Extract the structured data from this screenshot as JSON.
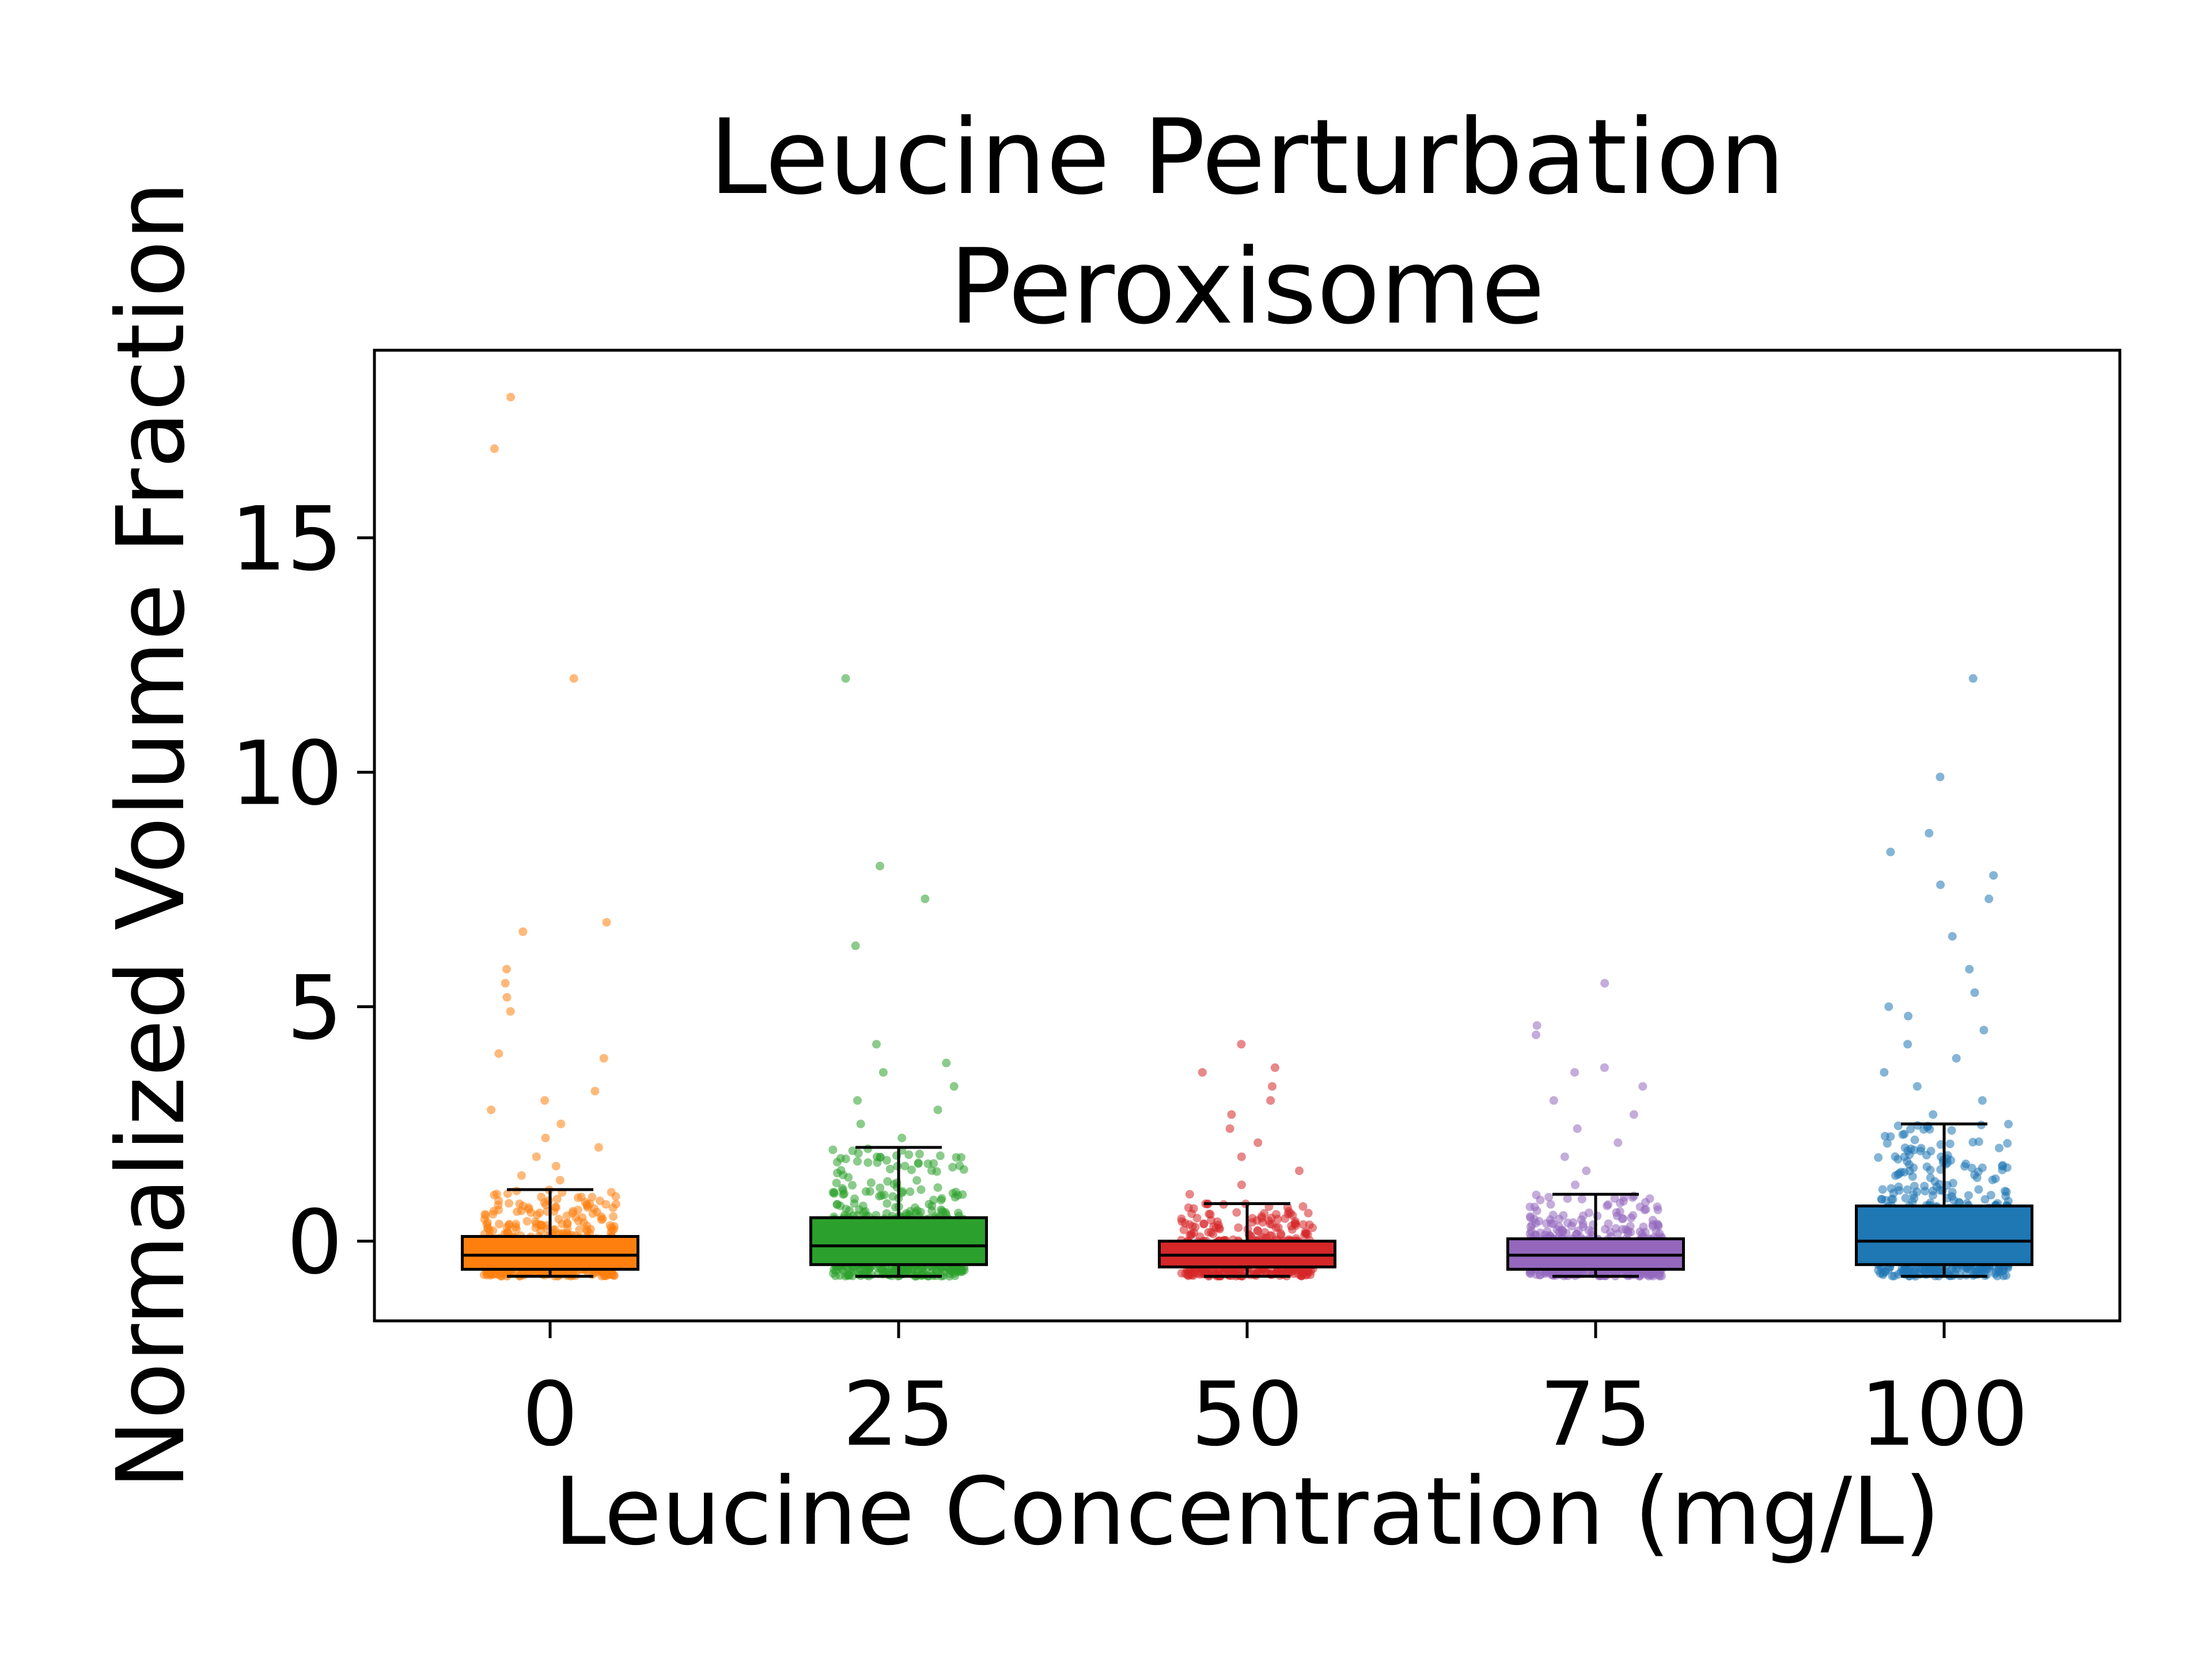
{
  "chart_data": {
    "type": "box",
    "title": [
      "Leucine Perturbation",
      "Peroxisome"
    ],
    "xlabel": "Leucine Concentration (mg/L)",
    "ylabel": "Normalized Volume Fraction",
    "ylim": [
      -1.7,
      19
    ],
    "yticks": [
      0,
      5,
      10,
      15
    ],
    "grid": false,
    "legend": "none",
    "categories": [
      "0",
      "25",
      "50",
      "75",
      "100"
    ],
    "series": [
      {
        "category": "0",
        "color": "#ff7f0e",
        "whisker_low": -0.75,
        "q1": -0.6,
        "median": -0.3,
        "q3": 0.1,
        "whisker_high": 1.1,
        "outliers": [
          1.3,
          1.4,
          1.6,
          1.8,
          2.0,
          2.2,
          2.5,
          2.8,
          3.0,
          3.2,
          3.9,
          4.0,
          4.9,
          5.2,
          5.5,
          5.8,
          6.6,
          6.8,
          12.0,
          16.9,
          18.0
        ]
      },
      {
        "category": "25",
        "color": "#2ca02c",
        "whisker_low": -0.75,
        "q1": -0.5,
        "median": -0.1,
        "q3": 0.5,
        "whisker_high": 2.0,
        "outliers": [
          2.2,
          2.5,
          2.8,
          3.0,
          3.3,
          3.6,
          3.8,
          4.2,
          6.3,
          7.3,
          8.0,
          12.0
        ]
      },
      {
        "category": "50",
        "color": "#d62728",
        "whisker_low": -0.75,
        "q1": -0.55,
        "median": -0.3,
        "q3": 0.0,
        "whisker_high": 0.8,
        "outliers": [
          1.0,
          1.2,
          1.5,
          1.8,
          2.1,
          2.4,
          2.7,
          3.0,
          3.3,
          3.6,
          3.7,
          4.2
        ]
      },
      {
        "category": "75",
        "color": "#9467bd",
        "whisker_low": -0.75,
        "q1": -0.6,
        "median": -0.3,
        "q3": 0.05,
        "whisker_high": 1.0,
        "outliers": [
          1.2,
          1.5,
          1.8,
          2.1,
          2.4,
          2.7,
          3.0,
          3.3,
          3.6,
          3.7,
          4.4,
          4.6,
          5.5
        ]
      },
      {
        "category": "100",
        "color": "#1f77b4",
        "whisker_low": -0.75,
        "q1": -0.5,
        "median": 0.0,
        "q3": 0.75,
        "whisker_high": 2.5,
        "outliers": [
          2.7,
          3.0,
          3.3,
          3.6,
          3.9,
          4.2,
          4.5,
          4.8,
          5.0,
          5.3,
          5.8,
          6.5,
          7.3,
          7.6,
          7.8,
          8.3,
          8.7,
          9.9,
          12.0
        ]
      }
    ]
  }
}
